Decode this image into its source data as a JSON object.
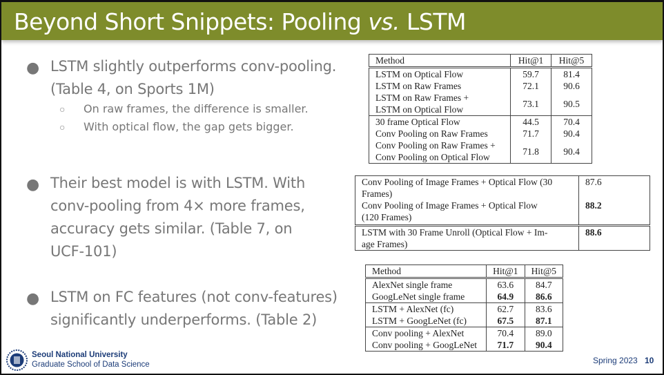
{
  "title": "Beyond Short Snippets: Pooling vs. LSTM",
  "title_parts": [
    "Beyond Short Snippets: Pooling ",
    "vs.",
    ". LSTM"
  ],
  "bullets": [
    {
      "lines": [
        "LSTM slightly outperforms conv-pooling.",
        "(Table 4, on Sports 1M)"
      ],
      "subs": [
        "On raw frames, the difference is smaller.",
        "With optical flow, the gap gets bigger."
      ]
    },
    {
      "lines": [
        "Their best model is with LSTM. With",
        "conv-pooling from 4× more frames,",
        "accuracy gets similar. (Table 7, on",
        "UCF-101)"
      ]
    },
    {
      "lines": [
        "LSTM on FC features (not conv-features)",
        "significantly underperforms. (Table 2)"
      ]
    }
  ],
  "table4": {
    "headers": [
      "Method",
      "Hit@1",
      "Hit@5"
    ],
    "rows": [
      [
        "LSTM on Optical Flow",
        "59.7",
        "81.4"
      ],
      [
        "LSTM on Raw Frames",
        "72.1",
        "90.6"
      ],
      [
        "LSTM on Raw Frames +",
        "LSTM on Optical Flow",
        "73.1",
        "90.5"
      ],
      [
        "30 frame Optical Flow",
        "44.5",
        "70.4"
      ],
      [
        "Conv Pooling on Raw Frames",
        "71.7",
        "90.4"
      ],
      [
        "Conv Pooling on Raw Frames +",
        "Conv Pooling on Optical Flow",
        "71.8",
        "90.4"
      ]
    ]
  },
  "table7": {
    "rows": [
      [
        "Conv Pooling of Image Frames + Optical Flow (30",
        "Frames)",
        "87.6"
      ],
      [
        "Conv Pooling of Image Frames + Optical Flow",
        "(120 Frames)",
        "88.2"
      ],
      [
        "LSTM with 30 Frame Unroll (Optical Flow + Im-",
        "age Frames)",
        "88.6"
      ]
    ]
  },
  "table2": {
    "headers": [
      "Method",
      "Hit@1",
      "Hit@5"
    ],
    "rows": [
      [
        "AlexNet single frame",
        "63.6",
        "84.7"
      ],
      [
        "GoogLeNet single frame",
        "64.9",
        "86.6"
      ],
      [
        "LSTM + AlexNet (fc)",
        "62.7",
        "83.6"
      ],
      [
        "LSTM + GoogLeNet (fc)",
        "67.5",
        "87.1"
      ],
      [
        "Conv pooling + AlexNet",
        "70.4",
        "89.0"
      ],
      [
        "Conv pooling + GoogLeNet",
        "71.7",
        "90.4"
      ]
    ]
  },
  "footer": {
    "university": "Seoul National University",
    "school": "Graduate School of Data Science",
    "semester": "Spring 2023",
    "page": "10"
  },
  "colors": {
    "header": "#7e8c2b",
    "footer_text": "#1c3c78",
    "body_text": "#777777"
  }
}
